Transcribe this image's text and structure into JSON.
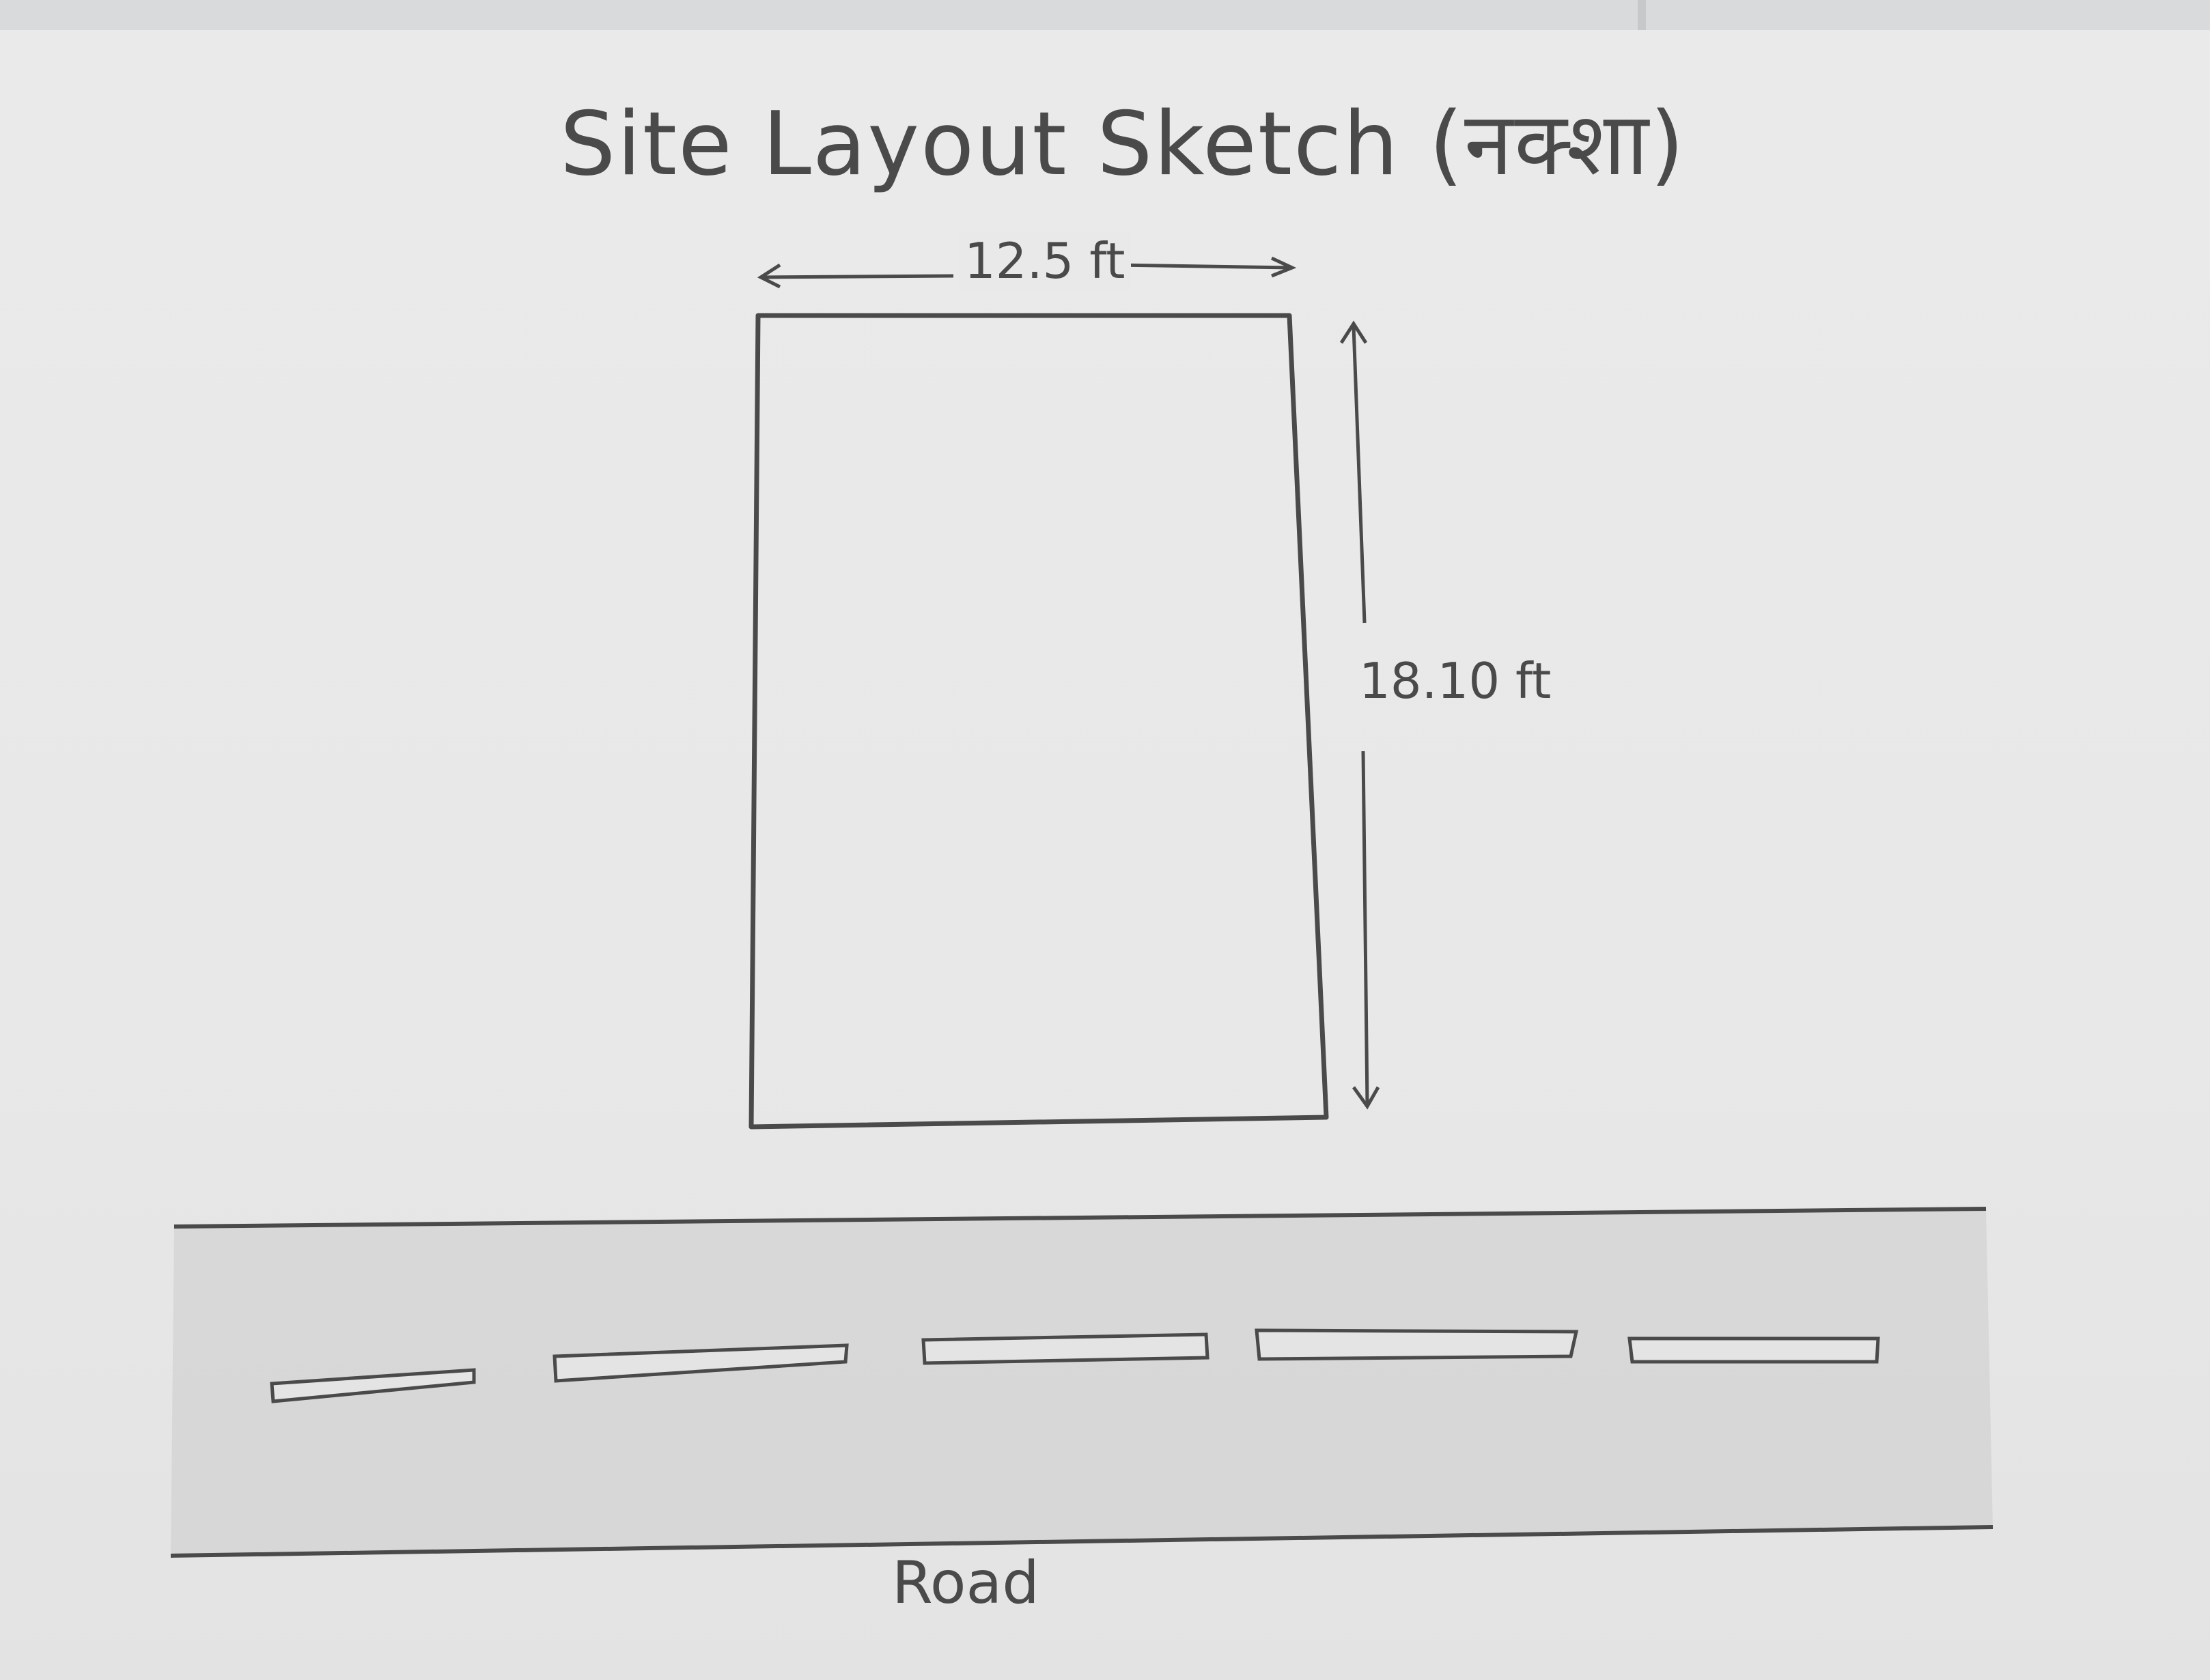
{
  "title": "Site Layout Sketch (नक्शा)",
  "plot": {
    "width_label": "12.5 ft",
    "height_label": "18.10 ft"
  },
  "road": {
    "label": "Road",
    "lane_dash_count": 5
  },
  "colors": {
    "pencil": "#4a4a4a",
    "paper": "#ebebeb",
    "road_shade": "#d6d6d6"
  }
}
